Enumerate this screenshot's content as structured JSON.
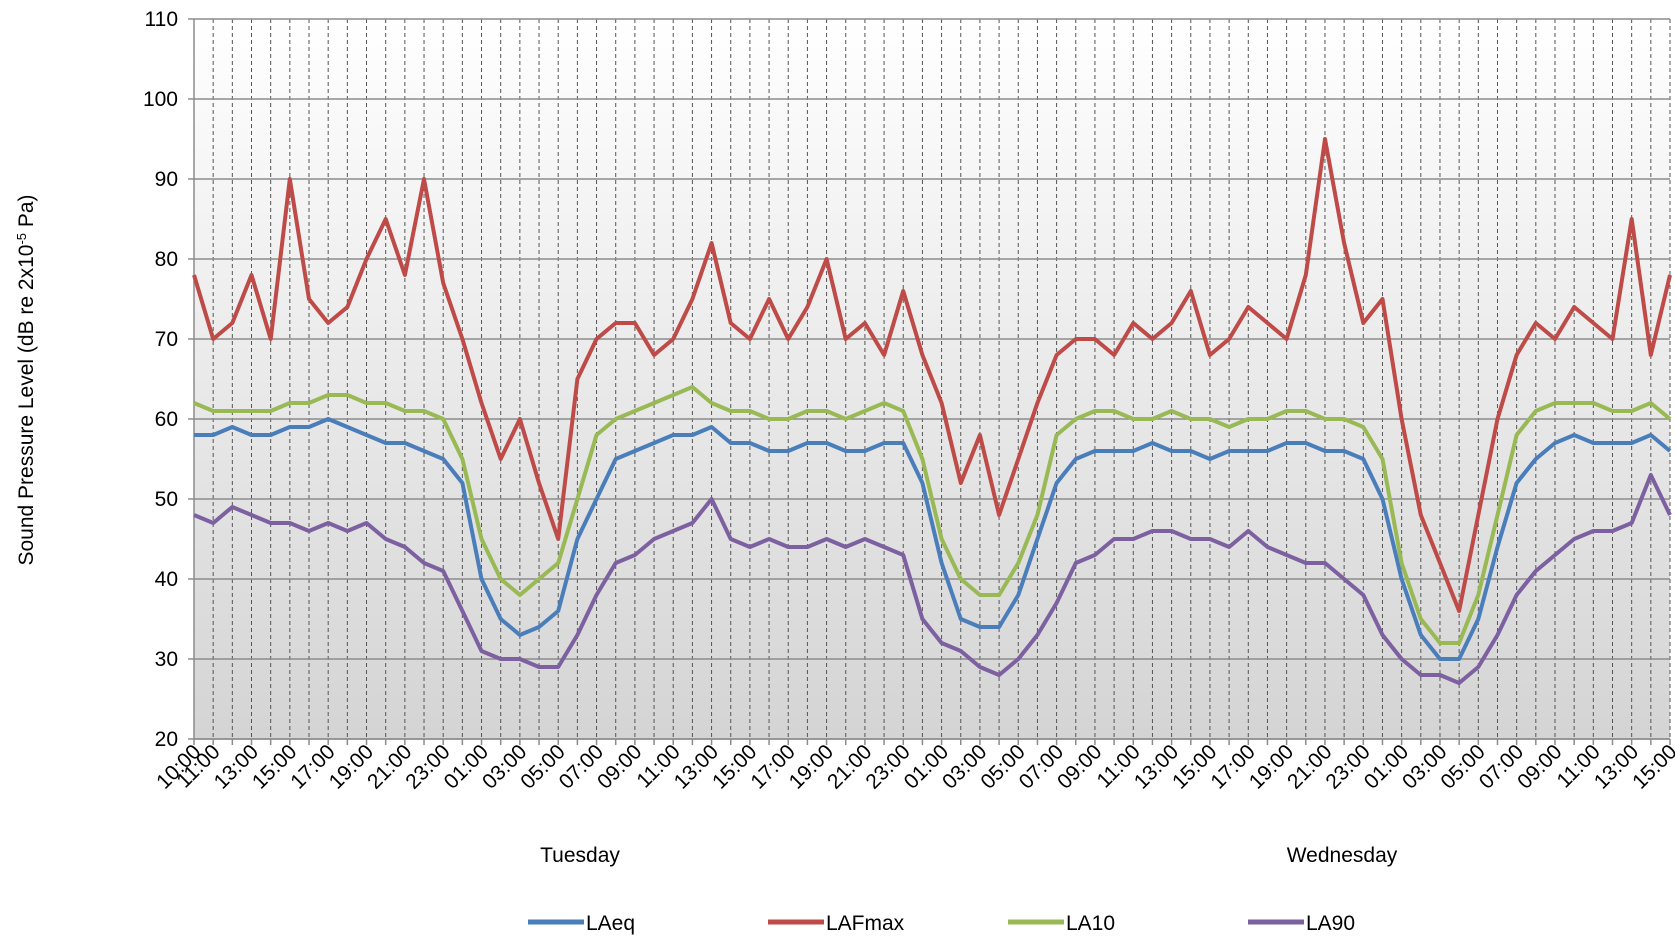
{
  "chart_data": {
    "type": "line",
    "ylabel": [
      "Sound Pressure Level (dB re 2x10",
      "-5",
      " Pa)"
    ],
    "annotations": [
      "Tuesday",
      "Wednesday"
    ],
    "categories": [
      "10:00",
      "11:00",
      null,
      "13:00",
      null,
      "15:00",
      null,
      "17:00",
      null,
      "19:00",
      null,
      "21:00",
      null,
      "23:00",
      null,
      "01:00",
      null,
      "03:00",
      null,
      "05:00",
      null,
      "07:00",
      null,
      "09:00",
      null,
      "11:00",
      null,
      "13:00",
      null,
      "15:00",
      null,
      "17:00",
      null,
      "19:00",
      null,
      "21:00",
      null,
      "23:00",
      null,
      "01:00",
      null,
      "03:00",
      null,
      "05:00",
      null,
      "07:00",
      null,
      "09:00",
      null,
      "11:00",
      null,
      "13:00",
      null,
      "15:00",
      null,
      "17:00",
      null,
      "19:00",
      null,
      "21:00",
      null,
      "23:00",
      null,
      "01:00",
      null,
      "03:00",
      null,
      "05:00",
      null,
      "07:00",
      null,
      "09:00",
      null,
      "11:00",
      null,
      "13:00",
      null,
      "15:00"
    ],
    "series": [
      {
        "name": "LAeq",
        "color": "#4a7ebb",
        "values": [
          58,
          58,
          59,
          58,
          58,
          59,
          59,
          60,
          59,
          58,
          57,
          57,
          56,
          55,
          52,
          40,
          35,
          33,
          34,
          36,
          45,
          50,
          55,
          56,
          57,
          58,
          58,
          59,
          57,
          57,
          56,
          56,
          57,
          57,
          56,
          56,
          57,
          57,
          52,
          42,
          35,
          34,
          34,
          38,
          45,
          52,
          55,
          56,
          56,
          56,
          57,
          56,
          56,
          55,
          56,
          56,
          56,
          57,
          57,
          56,
          56,
          55,
          50,
          40,
          33,
          30,
          30,
          35,
          44,
          52,
          55,
          57,
          58,
          57,
          57,
          57,
          58,
          56
        ]
      },
      {
        "name": "LAFmax",
        "color": "#be4b48",
        "values": [
          78,
          70,
          72,
          78,
          70,
          90,
          75,
          72,
          74,
          80,
          85,
          78,
          90,
          77,
          70,
          62,
          55,
          60,
          52,
          45,
          65,
          70,
          72,
          72,
          68,
          70,
          75,
          82,
          72,
          70,
          75,
          70,
          74,
          80,
          70,
          72,
          68,
          76,
          68,
          62,
          52,
          58,
          48,
          55,
          62,
          68,
          70,
          70,
          68,
          72,
          70,
          72,
          76,
          68,
          70,
          74,
          72,
          70,
          78,
          95,
          82,
          72,
          75,
          60,
          48,
          42,
          36,
          48,
          60,
          68,
          72,
          70,
          74,
          72,
          70,
          85,
          68,
          78
        ]
      },
      {
        "name": "LA10",
        "color": "#98b954",
        "values": [
          62,
          61,
          61,
          61,
          61,
          62,
          62,
          63,
          63,
          62,
          62,
          61,
          61,
          60,
          55,
          45,
          40,
          38,
          40,
          42,
          50,
          58,
          60,
          61,
          62,
          63,
          64,
          62,
          61,
          61,
          60,
          60,
          61,
          61,
          60,
          61,
          62,
          61,
          55,
          45,
          40,
          38,
          38,
          42,
          48,
          58,
          60,
          61,
          61,
          60,
          60,
          61,
          60,
          60,
          59,
          60,
          60,
          61,
          61,
          60,
          60,
          59,
          55,
          42,
          35,
          32,
          32,
          38,
          48,
          58,
          61,
          62,
          62,
          62,
          61,
          61,
          62,
          60
        ]
      },
      {
        "name": "LA90",
        "color": "#7d60a0",
        "values": [
          48,
          47,
          49,
          48,
          47,
          47,
          46,
          47,
          46,
          47,
          45,
          44,
          42,
          41,
          36,
          31,
          30,
          30,
          29,
          29,
          33,
          38,
          42,
          43,
          45,
          46,
          47,
          50,
          45,
          44,
          45,
          44,
          44,
          45,
          44,
          45,
          44,
          43,
          35,
          32,
          31,
          29,
          28,
          30,
          33,
          37,
          42,
          43,
          45,
          45,
          46,
          46,
          45,
          45,
          44,
          46,
          44,
          43,
          42,
          42,
          40,
          38,
          33,
          30,
          28,
          28,
          27,
          29,
          33,
          38,
          41,
          43,
          45,
          46,
          46,
          47,
          53,
          48
        ]
      }
    ],
    "ylim": [
      20,
      110
    ],
    "yticks": [
      20,
      30,
      40,
      50,
      60,
      70,
      80,
      90,
      100,
      110
    ],
    "grid": true,
    "legend": "bottom"
  }
}
